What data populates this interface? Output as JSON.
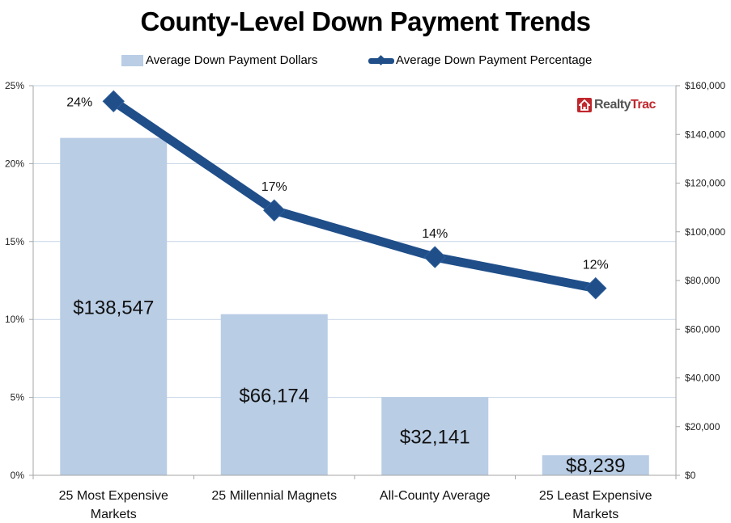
{
  "chart_data": {
    "type": "bar+line",
    "title": "County-Level Down Payment Trends",
    "categories": [
      [
        "25 Most Expensive",
        "Markets"
      ],
      [
        "25 Millennial Magnets"
      ],
      [
        "All-County Average"
      ],
      [
        "25 Least Expensive",
        "Markets"
      ]
    ],
    "series": [
      {
        "name": "Average Down Payment Dollars",
        "type": "bar",
        "axis": "right",
        "values": [
          138547,
          66174,
          32141,
          8239
        ],
        "labels": [
          "$138,547",
          "$66,174",
          "$32,141",
          "$8,239"
        ],
        "color": "#b9cde5"
      },
      {
        "name": "Average Down Payment Percentage",
        "type": "line",
        "axis": "left",
        "marker": "diamond",
        "values": [
          24,
          17,
          14,
          12
        ],
        "labels": [
          "24%",
          "17%",
          "14%",
          "12%"
        ],
        "color": "#1f4e89"
      }
    ],
    "left_axis": {
      "ylim": [
        0,
        25
      ],
      "ticks": [
        0,
        5,
        10,
        15,
        20,
        25
      ],
      "tick_labels": [
        "0%",
        "5%",
        "10%",
        "15%",
        "20%",
        "25%"
      ]
    },
    "right_axis": {
      "ylim": [
        0,
        160000
      ],
      "ticks": [
        0,
        20000,
        40000,
        60000,
        80000,
        100000,
        120000,
        140000,
        160000
      ],
      "tick_labels": [
        "$0",
        "$20,000",
        "$40,000",
        "$60,000",
        "$80,000",
        "$100,000",
        "$120,000",
        "$140,000",
        "$160,000"
      ]
    },
    "grid": true,
    "legend": "top-center",
    "xlabel": "",
    "ylabel": ""
  },
  "legend": {
    "bar_label": "Average Down Payment Dollars",
    "line_label": "Average Down Payment Percentage"
  },
  "logo": {
    "part1": "Realty",
    "part2": "Trac"
  },
  "colors": {
    "bar": "#b9cde5",
    "line": "#1f4e89",
    "grid": "#c6d4e6",
    "axis": "#a6a6a6"
  }
}
